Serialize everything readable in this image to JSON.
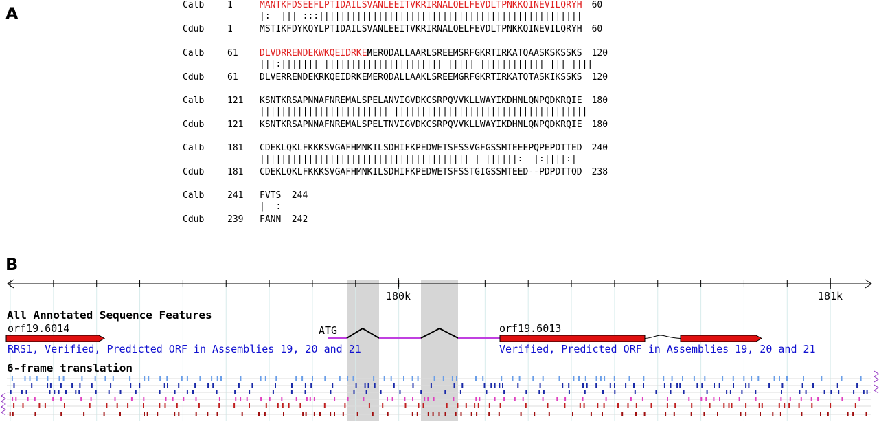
{
  "panel_a": {
    "label": "A",
    "blocks": [
      {
        "query_name": "Calb",
        "query_start": "1",
        "query_seq_red": "MANTKFDSEEFLPTIDAILSVANLEEITVKRIRNALQELFEVDLTPNKKQINEVILQRYH",
        "query_seq_bold": "",
        "query_seq_plain": "",
        "query_end": "60",
        "match": "|:  ||| :::|||||||||||||||||||||||||||||||||||||||||||||||||",
        "subject_name": "Cdub",
        "subject_start": "1",
        "subject_seq": "MSTIKFDYKQYLPTIDAILSVANLEEITVKRIRNALQELFEVDLTPNKKQINEVILQRYH",
        "subject_end": "60"
      },
      {
        "query_name": "Calb",
        "query_start": "61",
        "query_seq_red": "DLVDRRENDEKWKQEIDRKE",
        "query_seq_bold": "M",
        "query_seq_plain": "ERQDALLAARLSREEMSRFGKRTIRKATQAASKSKSSKS",
        "query_end": "120",
        "match": "|||:||||||| |||||||||||||||||||||| ||||| |||||||||||| ||| ||||",
        "subject_name": "Cdub",
        "subject_start": "61",
        "subject_seq": "DLVERRENDEKRKQEIDRKEMERQDALLAAKLSREEMGRFGKRTIRKATQTASKIKSSKS",
        "subject_end": "120"
      },
      {
        "query_name": "Calb",
        "query_start": "121",
        "query_seq_red": "",
        "query_seq_bold": "",
        "query_seq_plain": "KSNTKRSAPNNAFNREMALSPELANVIGVDKCSRPQVVKLLWAYIKDHNLQNPQDKRQIE",
        "query_end": "180",
        "match": "|||||||||||||||||||||||| ||||||||||||||||||||||||||||||||||||",
        "subject_name": "Cdub",
        "subject_start": "121",
        "subject_seq": "KSNTKRSAPNNAFNREMALSPELTNVIGVDKCSRPQVVKLLWAYIKDHNLQNPQDKRQIE",
        "subject_end": "180"
      },
      {
        "query_name": "Calb",
        "query_start": "181",
        "query_seq_red": "",
        "query_seq_bold": "",
        "query_seq_plain": "CDEKLQKLFKKKSVGAFHMNKILSDHIFKPEDWETSFSSVGFGSSMTEEEPQPEPDTTED",
        "query_end": "240",
        "match": "||||||||||||||||||||||||||||||||||||||| | ||||||:  |:||||:|",
        "subject_name": "Cdub",
        "subject_start": "181",
        "subject_seq": "CDEKLQKLFKKKSVGAFHMNKILSDHIFKPEDWETSFSSTGIGSSMTEED--PDPDTTQD",
        "subject_end": "238"
      },
      {
        "query_name": "Calb",
        "query_start": "241",
        "query_seq_red": "",
        "query_seq_bold": "",
        "query_seq_plain": "FVTS",
        "query_end": "244",
        "match": "|  :",
        "subject_name": "Cdub",
        "subject_start": "239",
        "subject_seq": "FANN",
        "subject_end": "242"
      }
    ]
  },
  "panel_b": {
    "label": "B",
    "ruler_labels": [
      "180k",
      "181k"
    ],
    "features_title": "All Annotated Sequence Features",
    "left_gene": {
      "name": "orf19.6014",
      "description": "RRS1, Verified, Predicted ORF in Assemblies 19, 20 and 21"
    },
    "atg_label": "ATG",
    "right_gene": {
      "name": "orf19.6013",
      "description": "Verified, Predicted ORF in Assemblies 19, 20 and 21"
    },
    "translation_title": "6-frame translation",
    "colors": {
      "gene_red": "#e01010",
      "intron_magenta": "#c040e0",
      "link_blue": "#1010d0",
      "highlight_gray": "#d6d6d6",
      "frame_colors": [
        "#6a9ee8",
        "#1a2aa8",
        "#1a2aa8",
        "#e040c0",
        "#c02020",
        "#a01010"
      ]
    }
  }
}
